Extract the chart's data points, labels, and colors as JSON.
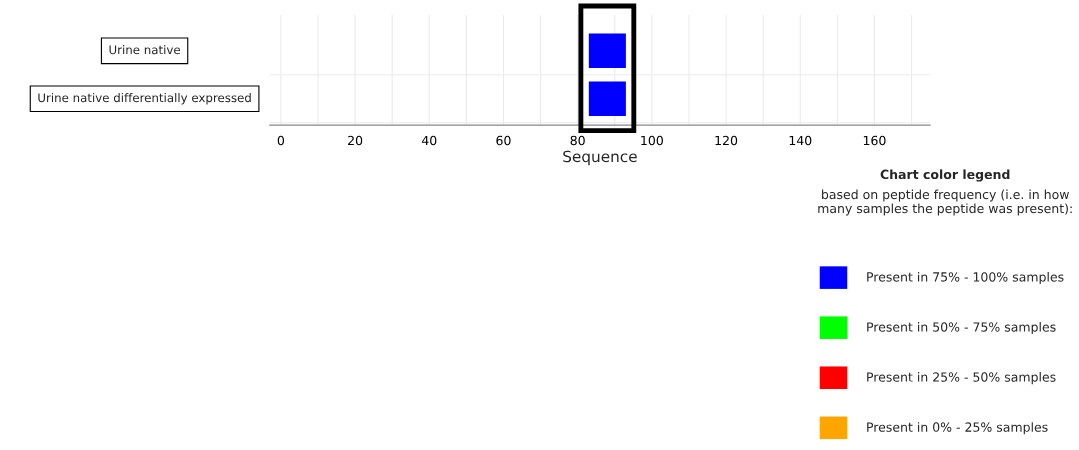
{
  "chart_data": {
    "type": "bar",
    "orientation": "horizontal",
    "xlabel": "Sequence",
    "categories": [
      "Urine native",
      "Urine native differentially expressed"
    ],
    "series": [
      {
        "name": "Present in 75% - 100% samples",
        "color": "#0000ff",
        "values": [
          10,
          10
        ],
        "base": [
          83,
          83
        ]
      },
      {
        "name": "Present in 50% - 75% samples",
        "color": "#00ff00",
        "values": [
          null,
          null
        ]
      },
      {
        "name": "Present in 25% - 50% samples",
        "color": "#ff0000",
        "values": [
          null,
          null
        ]
      },
      {
        "name": "Present in 0% - 25% samples",
        "color": "#ffa500",
        "values": [
          null,
          null
        ]
      }
    ],
    "legend_title": "Chart color legend",
    "annotations": [
      "based on peptide frequency (i.e. in how many samples the peptide was present):"
    ],
    "legend": "bottom right",
    "xlim": [
      -3,
      175
    ],
    "xticks": [
      0,
      {
        "value": 10,
        "label": null
      },
      20,
      {
        "value": 30,
        "label": null
      },
      40,
      {
        "value": 50,
        "label": null
      },
      60,
      {
        "value": 70,
        "label": null
      },
      80,
      {
        "value": 90,
        "label": null
      },
      100,
      {
        "value": 110,
        "label": null
      },
      120,
      {
        "value": 130,
        "label": null
      },
      140,
      {
        "value": 150,
        "label": null
      },
      160,
      {
        "value": 170,
        "label": null
      }
    ],
    "grid": true
  }
}
